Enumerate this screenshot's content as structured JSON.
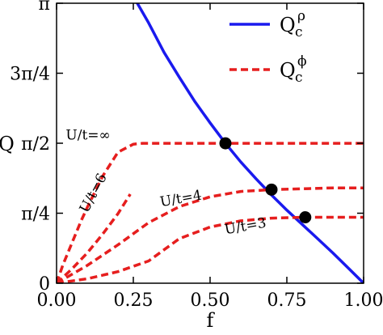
{
  "chart_data": {
    "type": "line",
    "xlabel": "f",
    "ylabel": "Q",
    "xlim": [
      0,
      1
    ],
    "ylim": [
      0,
      3.14159
    ],
    "grid": false,
    "legend_position": "top-right",
    "x_ticks": [
      {
        "value": 0,
        "label": "0.00"
      },
      {
        "value": 0.25,
        "label": "0.25"
      },
      {
        "value": 0.5,
        "label": "0.50"
      },
      {
        "value": 0.75,
        "label": "0.75"
      },
      {
        "value": 1.0,
        "label": "1.00"
      }
    ],
    "y_ticks": [
      {
        "value": 0,
        "label": "0"
      },
      {
        "value": 0.7854,
        "label": "π/4"
      },
      {
        "value": 1.5708,
        "label": "π/2"
      },
      {
        "value": 2.3562,
        "label": "3π/4"
      },
      {
        "value": 3.14159,
        "label": "π"
      }
    ],
    "legend": [
      {
        "series": "rho",
        "base": "Q",
        "sub": "c",
        "sup": "ρ"
      },
      {
        "series": "phi",
        "base": "Q",
        "sub": "c",
        "sup": "ϕ"
      }
    ],
    "series": [
      {
        "key": "rho",
        "style": "solid",
        "color": "#1a1aee",
        "x": [
          0.26,
          0.3,
          0.35,
          0.4,
          0.45,
          0.5,
          0.55,
          0.6,
          0.65,
          0.7,
          0.75,
          0.8,
          0.85,
          0.9,
          0.95,
          1.0
        ],
        "y": [
          3.16,
          2.92,
          2.59,
          2.31,
          2.04,
          1.8,
          1.57,
          1.36,
          1.17,
          0.99,
          0.82,
          0.66,
          0.5,
          0.34,
          0.17,
          0.0
        ]
      },
      {
        "key": "phi",
        "style": "dashed",
        "color": "#e61e1e",
        "annotation": "U/t=∞",
        "x": [
          0.0,
          0.02,
          0.05,
          0.08,
          0.1,
          0.15,
          0.2,
          0.25,
          0.28,
          0.3,
          0.4,
          0.5,
          0.6,
          0.7,
          0.8,
          0.9,
          1.0
        ],
        "y": [
          0.0,
          0.2,
          0.45,
          0.7,
          0.85,
          1.2,
          1.47,
          1.56,
          1.57,
          1.57,
          1.57,
          1.57,
          1.57,
          1.57,
          1.57,
          1.57,
          1.57
        ]
      },
      {
        "key": "phi",
        "style": "dashed",
        "color": "#e61e1e",
        "annotation": "U/t=6",
        "x": [
          0.0,
          0.05,
          0.1,
          0.15,
          0.2,
          0.24
        ],
        "y": [
          0.0,
          0.16,
          0.34,
          0.55,
          0.78,
          1.0
        ]
      },
      {
        "key": "phi",
        "style": "dashed",
        "color": "#e61e1e",
        "annotation": "U/t=4",
        "x": [
          0.0,
          0.1,
          0.2,
          0.3,
          0.4,
          0.5,
          0.6,
          0.7,
          0.8,
          0.9,
          1.0
        ],
        "y": [
          0.0,
          0.2,
          0.43,
          0.68,
          0.86,
          0.97,
          1.03,
          1.05,
          1.06,
          1.07,
          1.07
        ]
      },
      {
        "key": "phi",
        "style": "dashed",
        "color": "#e61e1e",
        "annotation": "U/t=3",
        "x": [
          0.0,
          0.1,
          0.2,
          0.3,
          0.4,
          0.5,
          0.6,
          0.7,
          0.8,
          0.9,
          1.0
        ],
        "y": [
          0.0,
          0.05,
          0.13,
          0.25,
          0.5,
          0.63,
          0.7,
          0.73,
          0.74,
          0.74,
          0.74
        ]
      }
    ],
    "points": [
      {
        "x": 0.55,
        "y": 1.57
      },
      {
        "x": 0.7,
        "y": 1.05
      },
      {
        "x": 0.81,
        "y": 0.74
      }
    ]
  }
}
